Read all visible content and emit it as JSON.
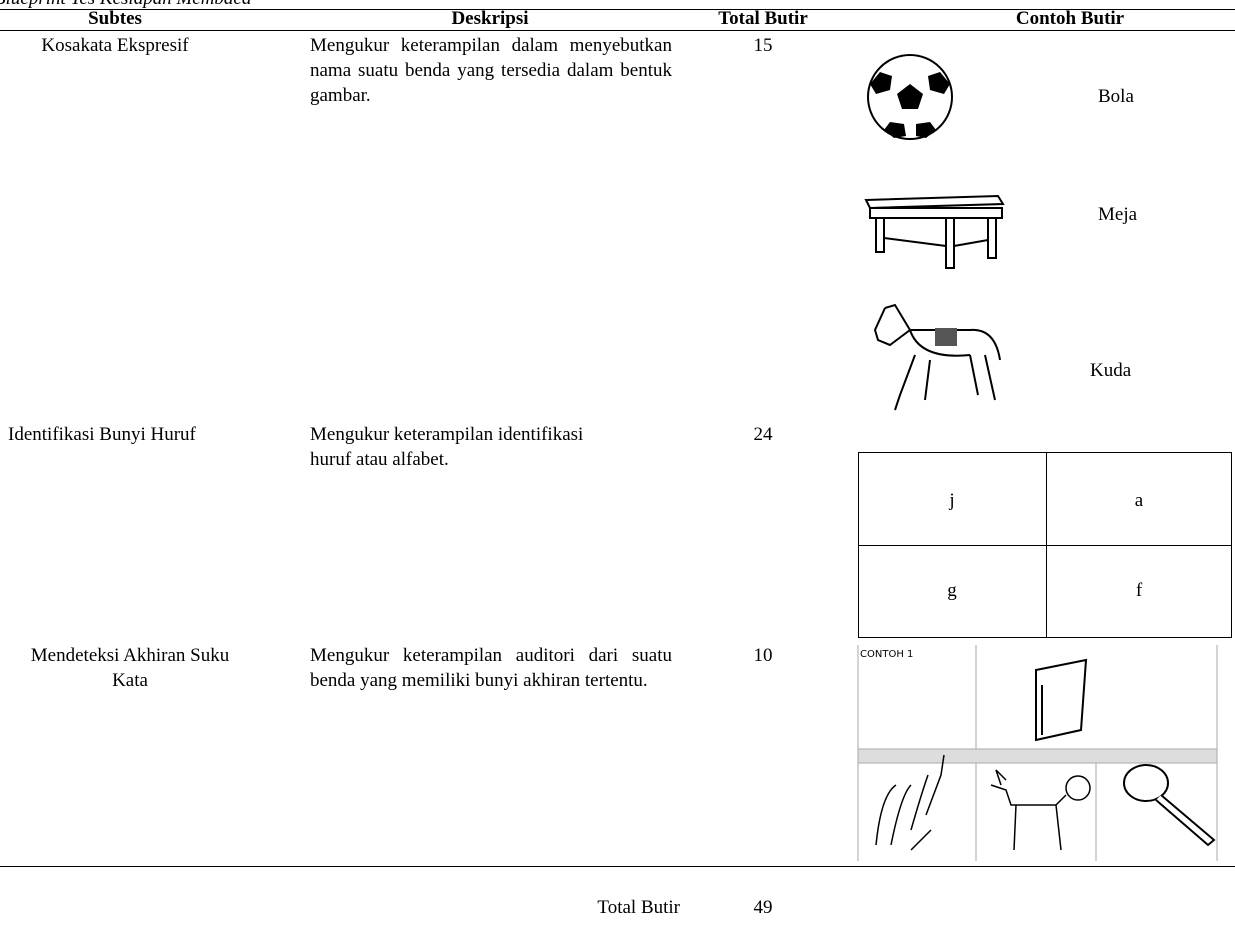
{
  "caption": "Blueprint Tes Kesiapan Membaca",
  "table": {
    "headers": [
      "Subtes",
      "Deskripsi",
      "Total Butir",
      "Contoh Butir"
    ],
    "rows": [
      {
        "subtes": "Kosakata Ekspresif",
        "deskripsi": "Mengukur keterampilan dalam menyebutkan nama suatu benda yang tersedia dalam bentuk gambar.",
        "total": 15,
        "examples": [
          "Bola",
          "Meja",
          "Kuda"
        ]
      },
      {
        "subtes": "Identifikasi Bunyi Huruf",
        "deskripsi": "Mengukur keterampilan identifikasi huruf atau alfabet.",
        "total": 24,
        "examples": [
          [
            "j",
            "a"
          ],
          [
            "g",
            "f"
          ]
        ]
      },
      {
        "subtes": "Mendeteksi Akhiran Suku Kata",
        "deskripsi": "Mengukur keterampilan auditori dari suatu benda yang memiliki bunyi akhiran tertentu.",
        "total": 10,
        "examples": [
          "CONTOH 1"
        ]
      }
    ]
  },
  "total": {
    "label": "Total Butir",
    "value": 49
  }
}
